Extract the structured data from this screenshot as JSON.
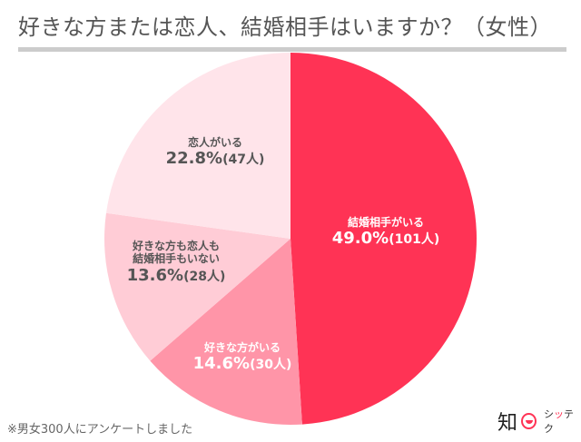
{
  "title": "好きな方または恋人、結婚相手はいますか？（女性）",
  "chart_data": {
    "type": "pie",
    "title": "好きな方または恋人、結婚相手はいますか？（女性）",
    "categories": [
      "結婚相手がいる",
      "好きな方がいる",
      "好きな方も恋人も結婚相手もいない",
      "恋人がいる"
    ],
    "values": [
      49.0,
      14.6,
      13.6,
      22.8
    ],
    "counts": [
      101,
      30,
      28,
      47
    ],
    "unit": "%",
    "colors": [
      "#ff3355",
      "#ff95a8",
      "#ffccd6",
      "#ffe4ea"
    ],
    "start_angle": "12 o'clock",
    "direction": "clockwise",
    "legend": "none (inline labels)"
  },
  "slices": [
    {
      "name": "結婚相手がいる",
      "pct": "49.0%",
      "cnt": "(101人)"
    },
    {
      "name": "好きな方がいる",
      "pct": "14.6%",
      "cnt": "(30人)"
    },
    {
      "name_line1": "好きな方も恋人も",
      "name_line2": "結婚相手もいない",
      "pct": "13.6%",
      "cnt": "(28人)"
    },
    {
      "name": "恋人がいる",
      "pct": "22.8%",
      "cnt": "(47人)"
    }
  ],
  "footnote": "※男女300人にアンケートしました",
  "logo": {
    "kanji": "知",
    "brand_a": "シ",
    "brand_red": "ッ",
    "brand_b": "テク"
  }
}
